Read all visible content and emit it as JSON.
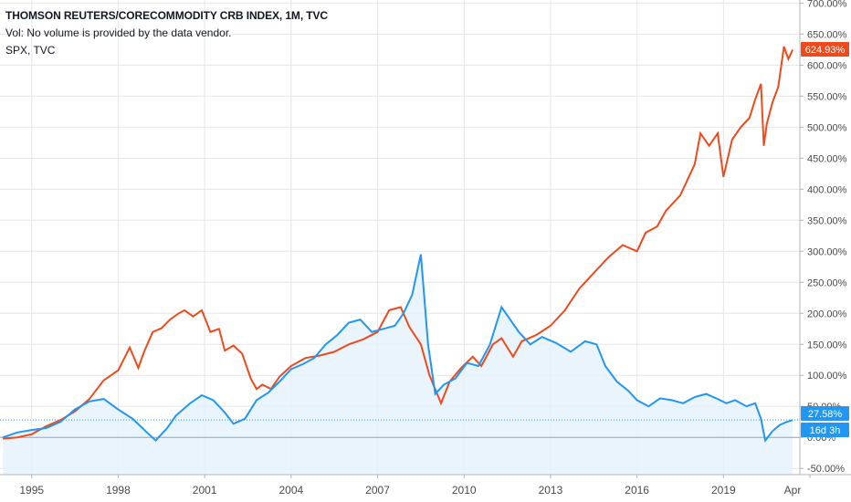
{
  "legend": {
    "title": "THOMSON REUTERS/CORECOMMODITY CRB INDEX, 1M, TVC",
    "volume_note": "Vol: No volume is provided by the data vendor.",
    "compare_symbol": "SPX, TVC"
  },
  "badges": {
    "spx_value": "624.93%",
    "crb_value": "27.58%",
    "countdown": "16d 3h"
  },
  "colors": {
    "spx": "#ef4a1b",
    "crb": "#2196f3",
    "crb_fill": "#e3f1fd",
    "grid": "#e6e6e6",
    "axis_text": "#4a4a4a",
    "baseline": "#8fa7b8"
  },
  "chart_data": {
    "type": "line",
    "x_ticks": [
      "1995",
      "1998",
      "2001",
      "2004",
      "2007",
      "2010",
      "2013",
      "2016",
      "2019",
      "Apr"
    ],
    "y_ticks": [
      "-50.00%",
      "0.00%",
      "50.00%",
      "100.00%",
      "150.00%",
      "200.00%",
      "250.00%",
      "300.00%",
      "350.00%",
      "400.00%",
      "450.00%",
      "500.00%",
      "550.00%",
      "600.00%",
      "650.00%",
      "700.00%"
    ],
    "ylim": [
      -60,
      705
    ],
    "xlim": [
      1993.9,
      2021.65
    ],
    "series": [
      {
        "name": "SPX, TVC",
        "color": "#ef4a1b",
        "points": [
          [
            1994.0,
            -2
          ],
          [
            1994.5,
            0
          ],
          [
            1995.0,
            5
          ],
          [
            1995.5,
            18
          ],
          [
            1996.0,
            28
          ],
          [
            1996.5,
            42
          ],
          [
            1997.0,
            62
          ],
          [
            1997.5,
            92
          ],
          [
            1998.0,
            108
          ],
          [
            1998.4,
            145
          ],
          [
            1998.7,
            112
          ],
          [
            1998.9,
            138
          ],
          [
            1999.2,
            170
          ],
          [
            1999.5,
            176
          ],
          [
            1999.8,
            190
          ],
          [
            2000.1,
            200
          ],
          [
            2000.3,
            205
          ],
          [
            2000.6,
            195
          ],
          [
            2000.9,
            205
          ],
          [
            2001.2,
            170
          ],
          [
            2001.5,
            175
          ],
          [
            2001.7,
            140
          ],
          [
            2002.0,
            148
          ],
          [
            2002.3,
            135
          ],
          [
            2002.6,
            95
          ],
          [
            2002.8,
            78
          ],
          [
            2003.0,
            85
          ],
          [
            2003.3,
            78
          ],
          [
            2003.6,
            98
          ],
          [
            2004.0,
            115
          ],
          [
            2004.5,
            128
          ],
          [
            2005.0,
            132
          ],
          [
            2005.5,
            138
          ],
          [
            2006.0,
            150
          ],
          [
            2006.5,
            158
          ],
          [
            2007.0,
            170
          ],
          [
            2007.4,
            205
          ],
          [
            2007.8,
            210
          ],
          [
            2008.1,
            178
          ],
          [
            2008.5,
            150
          ],
          [
            2008.8,
            100
          ],
          [
            2009.2,
            55
          ],
          [
            2009.5,
            90
          ],
          [
            2009.9,
            112
          ],
          [
            2010.3,
            130
          ],
          [
            2010.6,
            115
          ],
          [
            2011.0,
            150
          ],
          [
            2011.3,
            160
          ],
          [
            2011.7,
            130
          ],
          [
            2012.0,
            155
          ],
          [
            2012.5,
            165
          ],
          [
            2013.0,
            180
          ],
          [
            2013.5,
            205
          ],
          [
            2014.0,
            240
          ],
          [
            2014.5,
            265
          ],
          [
            2015.0,
            290
          ],
          [
            2015.5,
            310
          ],
          [
            2016.0,
            300
          ],
          [
            2016.3,
            330
          ],
          [
            2016.7,
            340
          ],
          [
            2017.0,
            365
          ],
          [
            2017.5,
            390
          ],
          [
            2018.0,
            440
          ],
          [
            2018.2,
            490
          ],
          [
            2018.5,
            470
          ],
          [
            2018.8,
            490
          ],
          [
            2019.0,
            420
          ],
          [
            2019.3,
            480
          ],
          [
            2019.6,
            500
          ],
          [
            2019.9,
            515
          ],
          [
            2020.1,
            545
          ],
          [
            2020.3,
            570
          ],
          [
            2020.4,
            470
          ],
          [
            2020.5,
            505
          ],
          [
            2020.7,
            540
          ],
          [
            2020.9,
            565
          ],
          [
            2021.1,
            630
          ],
          [
            2021.25,
            610
          ],
          [
            2021.4,
            625
          ]
        ]
      },
      {
        "name": "THOMSON REUTERS/CORECOMMODITY CRB INDEX",
        "color": "#2196f3",
        "points": [
          [
            1994.0,
            0
          ],
          [
            1994.5,
            8
          ],
          [
            1995.0,
            12
          ],
          [
            1995.5,
            15
          ],
          [
            1996.0,
            25
          ],
          [
            1996.5,
            45
          ],
          [
            1997.0,
            58
          ],
          [
            1997.5,
            62
          ],
          [
            1998.0,
            45
          ],
          [
            1998.5,
            30
          ],
          [
            1999.0,
            8
          ],
          [
            1999.3,
            -5
          ],
          [
            1999.7,
            15
          ],
          [
            2000.0,
            35
          ],
          [
            2000.5,
            55
          ],
          [
            2000.9,
            68
          ],
          [
            2001.3,
            60
          ],
          [
            2001.7,
            40
          ],
          [
            2002.0,
            22
          ],
          [
            2002.4,
            30
          ],
          [
            2002.8,
            60
          ],
          [
            2003.2,
            72
          ],
          [
            2003.6,
            90
          ],
          [
            2004.0,
            110
          ],
          [
            2004.4,
            118
          ],
          [
            2004.8,
            128
          ],
          [
            2005.2,
            150
          ],
          [
            2005.6,
            165
          ],
          [
            2006.0,
            185
          ],
          [
            2006.4,
            190
          ],
          [
            2006.8,
            170
          ],
          [
            2007.2,
            175
          ],
          [
            2007.6,
            180
          ],
          [
            2007.9,
            200
          ],
          [
            2008.2,
            230
          ],
          [
            2008.5,
            295
          ],
          [
            2008.75,
            150
          ],
          [
            2009.0,
            70
          ],
          [
            2009.3,
            85
          ],
          [
            2009.7,
            95
          ],
          [
            2010.1,
            120
          ],
          [
            2010.5,
            115
          ],
          [
            2010.9,
            150
          ],
          [
            2011.3,
            210
          ],
          [
            2011.6,
            190
          ],
          [
            2011.9,
            170
          ],
          [
            2012.3,
            150
          ],
          [
            2012.7,
            162
          ],
          [
            2013.2,
            152
          ],
          [
            2013.7,
            138
          ],
          [
            2014.2,
            155
          ],
          [
            2014.6,
            150
          ],
          [
            2014.9,
            115
          ],
          [
            2015.3,
            90
          ],
          [
            2015.7,
            75
          ],
          [
            2016.0,
            60
          ],
          [
            2016.4,
            50
          ],
          [
            2016.8,
            63
          ],
          [
            2017.2,
            60
          ],
          [
            2017.6,
            55
          ],
          [
            2018.0,
            65
          ],
          [
            2018.4,
            70
          ],
          [
            2018.8,
            62
          ],
          [
            2019.1,
            55
          ],
          [
            2019.4,
            60
          ],
          [
            2019.8,
            50
          ],
          [
            2020.1,
            55
          ],
          [
            2020.3,
            30
          ],
          [
            2020.45,
            -5
          ],
          [
            2020.7,
            10
          ],
          [
            2020.95,
            20
          ],
          [
            2021.2,
            25
          ],
          [
            2021.4,
            28
          ]
        ]
      }
    ]
  }
}
